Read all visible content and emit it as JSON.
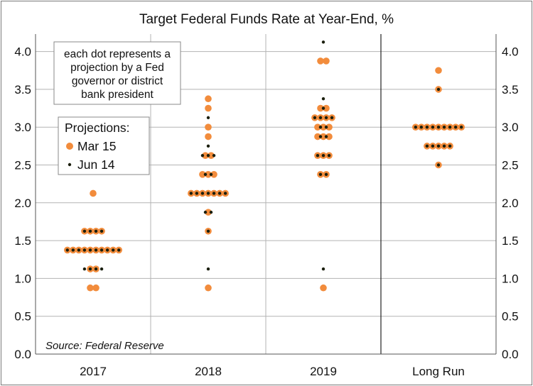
{
  "colors": {
    "march": "#f28c3c",
    "june": "#1b1f0e",
    "grid": "#b3b3b3",
    "separator": "#222222",
    "background": "#ffffff"
  },
  "chart_data": {
    "type": "scatter",
    "subtype": "dot-plot",
    "title": "Target Federal Funds Rate at Year-End, %",
    "xlabel": "",
    "ylabel": "",
    "categories": [
      "2017",
      "2018",
      "2019",
      "Long Run"
    ],
    "ylim": [
      0,
      4.25
    ],
    "yticks": [
      "0.0",
      "0.5",
      "1.0",
      "1.5",
      "2.0",
      "2.5",
      "3.0",
      "3.5",
      "4.0"
    ],
    "y_axis_both_sides": true,
    "grid": true,
    "separator_before": "Long Run",
    "annotation": [
      "each dot represents a",
      "projection by a Fed",
      "governor or district",
      "bank president"
    ],
    "source": "Source: Federal Reserve",
    "legend": {
      "title": "Projections:",
      "placement": "top-left",
      "entries": [
        "Mar 15",
        "Jun 14"
      ]
    },
    "series": [
      {
        "name": "Mar 15",
        "color_key": "march",
        "points": [
          {
            "x": "2017",
            "y": 2.125,
            "count": 1
          },
          {
            "x": "2017",
            "y": 1.625,
            "count": 4
          },
          {
            "x": "2017",
            "y": 1.375,
            "count": 10
          },
          {
            "x": "2017",
            "y": 1.125,
            "count": 2
          },
          {
            "x": "2017",
            "y": 0.875,
            "count": 2
          },
          {
            "x": "2018",
            "y": 3.375,
            "count": 1
          },
          {
            "x": "2018",
            "y": 3.25,
            "count": 1
          },
          {
            "x": "2018",
            "y": 3.0,
            "count": 1
          },
          {
            "x": "2018",
            "y": 2.875,
            "count": 1
          },
          {
            "x": "2018",
            "y": 2.625,
            "count": 2
          },
          {
            "x": "2018",
            "y": 2.375,
            "count": 3
          },
          {
            "x": "2018",
            "y": 2.125,
            "count": 7
          },
          {
            "x": "2018",
            "y": 1.875,
            "count": 1
          },
          {
            "x": "2018",
            "y": 1.625,
            "count": 1
          },
          {
            "x": "2018",
            "y": 0.875,
            "count": 1
          },
          {
            "x": "2019",
            "y": 3.875,
            "count": 2
          },
          {
            "x": "2019",
            "y": 3.25,
            "count": 2
          },
          {
            "x": "2019",
            "y": 3.125,
            "count": 4
          },
          {
            "x": "2019",
            "y": 3.0,
            "count": 3
          },
          {
            "x": "2019",
            "y": 2.875,
            "count": 3
          },
          {
            "x": "2019",
            "y": 2.625,
            "count": 3
          },
          {
            "x": "2019",
            "y": 2.375,
            "count": 2
          },
          {
            "x": "2019",
            "y": 0.875,
            "count": 1
          },
          {
            "x": "Long Run",
            "y": 3.75,
            "count": 1
          },
          {
            "x": "Long Run",
            "y": 3.5,
            "count": 1
          },
          {
            "x": "Long Run",
            "y": 3.0,
            "count": 9
          },
          {
            "x": "Long Run",
            "y": 2.75,
            "count": 5
          },
          {
            "x": "Long Run",
            "y": 2.5,
            "count": 1
          }
        ]
      },
      {
        "name": "Jun 14",
        "color_key": "june",
        "points": [
          {
            "x": "2017",
            "y": 1.625,
            "count": 4
          },
          {
            "x": "2017",
            "y": 1.375,
            "count": 10
          },
          {
            "x": "2017",
            "y": 1.125,
            "count": 4
          },
          {
            "x": "2018",
            "y": 3.125,
            "count": 1
          },
          {
            "x": "2018",
            "y": 2.75,
            "count": 1
          },
          {
            "x": "2018",
            "y": 2.625,
            "count": 3
          },
          {
            "x": "2018",
            "y": 2.375,
            "count": 2
          },
          {
            "x": "2018",
            "y": 2.125,
            "count": 7
          },
          {
            "x": "2018",
            "y": 1.875,
            "count": 2
          },
          {
            "x": "2018",
            "y": 1.625,
            "count": 1
          },
          {
            "x": "2018",
            "y": 1.125,
            "count": 1
          },
          {
            "x": "2019",
            "y": 4.125,
            "count": 1
          },
          {
            "x": "2019",
            "y": 3.375,
            "count": 1
          },
          {
            "x": "2019",
            "y": 3.25,
            "count": 1
          },
          {
            "x": "2019",
            "y": 3.125,
            "count": 4
          },
          {
            "x": "2019",
            "y": 3.0,
            "count": 2
          },
          {
            "x": "2019",
            "y": 2.875,
            "count": 2
          },
          {
            "x": "2019",
            "y": 2.625,
            "count": 3
          },
          {
            "x": "2019",
            "y": 2.375,
            "count": 2
          },
          {
            "x": "2019",
            "y": 1.125,
            "count": 1
          },
          {
            "x": "Long Run",
            "y": 3.5,
            "count": 1
          },
          {
            "x": "Long Run",
            "y": 3.0,
            "count": 9
          },
          {
            "x": "Long Run",
            "y": 2.75,
            "count": 5
          },
          {
            "x": "Long Run",
            "y": 2.5,
            "count": 1
          }
        ]
      }
    ]
  }
}
